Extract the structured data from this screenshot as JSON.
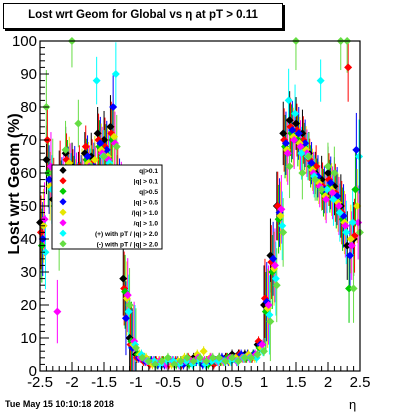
{
  "title": "Lost wrt Geom for Global vs   η at pT > 0.11",
  "footer": "Tue May 15 10:10:18 2018",
  "chart_data": {
    "type": "scatter",
    "title": "Lost wrt Geom for Global vs   η at pT > 0.11",
    "xlabel": "η",
    "ylabel": "Lost wrt Geom (%)",
    "xlim": [
      -2.5,
      2.5
    ],
    "ylim": [
      0,
      100
    ],
    "xticks": [
      -2.5,
      -2,
      -1.5,
      -1,
      -0.5,
      0,
      0.5,
      1,
      1.5,
      2,
      2.5
    ],
    "xtick_labels": [
      "-2.5",
      "-2",
      "-1.5",
      "-1",
      "-0.5",
      "0",
      "0.5",
      "1",
      "1.5",
      "2",
      "2.5"
    ],
    "yticks": [
      0,
      10,
      20,
      30,
      40,
      50,
      60,
      70,
      80,
      90,
      100
    ],
    "ytick_labels": [
      "0",
      "10",
      "20",
      "30",
      "40",
      "50",
      "60",
      "70",
      "80",
      "90",
      "100"
    ],
    "grid": false,
    "legend_position": "left",
    "legend": [
      {
        "label": "q|>0.1",
        "color": "#000000"
      },
      {
        "label": "|q| > 0.1",
        "color": "#ff0000"
      },
      {
        "label": "q|>0.5",
        "color": "#00cc00"
      },
      {
        "label": "|q| > 0.5",
        "color": "#0000ff"
      },
      {
        "label": "/|q| > 1.0",
        "color": "#e6e600"
      },
      {
        "label": "/q| > 1.0",
        "color": "#ff00ff"
      },
      {
        "label": "(+) with pT / |q| > 2.0",
        "color": "#00ffff"
      },
      {
        "label": "(-) with pT / |q| > 2.0",
        "color": "#66dd44"
      }
    ],
    "series": [
      {
        "color": "#000000",
        "x": [
          -2.45,
          -2.35,
          -2.25,
          -2.15,
          -2.05,
          -1.95,
          -1.85,
          -1.75,
          -1.65,
          -1.55,
          -1.45,
          -1.35,
          -1.25,
          -1.15,
          -1.05,
          -0.95,
          -0.85,
          -0.75,
          -0.65,
          -0.55,
          -0.45,
          -0.35,
          -0.25,
          -0.15,
          -0.05,
          0.05,
          0.15,
          0.25,
          0.35,
          0.45,
          0.55,
          0.65,
          0.75,
          0.85,
          0.95,
          1.05,
          1.15,
          1.25,
          1.35,
          1.45,
          1.55,
          1.65,
          1.75,
          1.85,
          1.95,
          2.05,
          2.15,
          2.25,
          2.35,
          2.45
        ],
        "y": [
          45,
          64,
          52,
          58,
          66,
          62,
          60,
          66,
          65,
          72,
          70,
          74,
          55,
          28,
          10,
          5,
          4,
          3,
          3,
          2,
          3,
          2,
          3,
          3,
          4,
          3,
          3,
          3,
          4,
          4,
          5,
          5,
          5,
          4,
          8,
          20,
          35,
          50,
          72,
          76,
          75,
          72,
          66,
          60,
          58,
          60,
          56,
          50,
          38,
          40
        ]
      },
      {
        "color": "#ff0000",
        "x": [
          -2.45,
          -2.35,
          -2.25,
          -2.15,
          -2.05,
          -1.95,
          -1.85,
          -1.75,
          -1.65,
          -1.55,
          -1.45,
          -1.35,
          -1.25,
          -1.15,
          -1.05,
          -0.95,
          -0.85,
          -0.75,
          -0.65,
          -0.55,
          -0.45,
          -0.35,
          -0.25,
          -0.15,
          -0.05,
          0.05,
          0.15,
          0.25,
          0.35,
          0.45,
          0.55,
          0.65,
          0.75,
          0.85,
          0.95,
          1.05,
          1.15,
          1.25,
          1.35,
          1.45,
          1.55,
          1.65,
          1.75,
          1.85,
          1.95,
          2.05,
          2.15,
          2.25,
          2.35,
          2.45
        ],
        "y": [
          42,
          70,
          55,
          61,
          64,
          60,
          62,
          68,
          63,
          70,
          68,
          72,
          57,
          25,
          8,
          4,
          3,
          2,
          3,
          3,
          2,
          3,
          2,
          4,
          3,
          3,
          3,
          2,
          3,
          4,
          4,
          5,
          4,
          4,
          9,
          22,
          33,
          50,
          70,
          74,
          73,
          70,
          64,
          62,
          56,
          58,
          54,
          48,
          92,
          41
        ]
      },
      {
        "color": "#00cc00",
        "x": [
          -2.45,
          -2.35,
          -2.25,
          -2.15,
          -2.05,
          -1.95,
          -1.85,
          -1.75,
          -1.65,
          -1.55,
          -1.45,
          -1.35,
          -1.25,
          -1.15,
          -1.05,
          -0.95,
          -0.85,
          -0.75,
          -0.65,
          -0.55,
          -0.45,
          -0.35,
          -0.25,
          -0.15,
          -0.05,
          0.05,
          0.15,
          0.25,
          0.35,
          0.45,
          0.55,
          0.65,
          0.75,
          0.85,
          0.95,
          1.05,
          1.15,
          1.25,
          1.35,
          1.45,
          1.55,
          1.65,
          1.75,
          1.85,
          1.95,
          2.05,
          2.15,
          2.25,
          2.35,
          2.45
        ],
        "y": [
          38,
          60,
          50,
          55,
          62,
          58,
          57,
          64,
          60,
          68,
          66,
          70,
          52,
          24,
          9,
          5,
          4,
          3,
          2,
          3,
          3,
          2,
          3,
          2,
          3,
          3,
          2,
          3,
          3,
          4,
          4,
          4,
          4,
          5,
          7,
          18,
          30,
          46,
          68,
          72,
          70,
          68,
          62,
          58,
          54,
          56,
          52,
          46,
          25,
          55
        ]
      },
      {
        "color": "#0000ff",
        "x": [
          -2.45,
          -2.35,
          -2.25,
          -2.15,
          -2.05,
          -1.95,
          -1.85,
          -1.75,
          -1.65,
          -1.55,
          -1.45,
          -1.35,
          -1.25,
          -1.15,
          -1.05,
          -0.95,
          -0.85,
          -0.75,
          -0.65,
          -0.55,
          -0.45,
          -0.35,
          -0.25,
          -0.15,
          -0.05,
          0.05,
          0.15,
          0.25,
          0.35,
          0.45,
          0.55,
          0.65,
          0.75,
          0.85,
          0.95,
          1.05,
          1.15,
          1.25,
          1.35,
          1.45,
          1.55,
          1.65,
          1.75,
          1.85,
          1.95,
          2.05,
          2.15,
          2.25,
          2.35,
          2.45
        ],
        "y": [
          40,
          58,
          48,
          56,
          60,
          61,
          59,
          65,
          62,
          69,
          67,
          80,
          54,
          16,
          7,
          4,
          3,
          3,
          2,
          2,
          3,
          3,
          2,
          3,
          3,
          2,
          3,
          3,
          4,
          3,
          4,
          5,
          5,
          5,
          8,
          21,
          34,
          48,
          69,
          73,
          72,
          69,
          63,
          59,
          55,
          57,
          53,
          47,
          35,
          67
        ]
      },
      {
        "color": "#e6e600",
        "x": [
          -2.45,
          -2.35,
          -2.25,
          -2.15,
          -2.05,
          -1.95,
          -1.85,
          -1.75,
          -1.65,
          -1.55,
          -1.45,
          -1.35,
          -1.25,
          -1.15,
          -1.05,
          -0.95,
          -0.85,
          -0.75,
          -0.65,
          -0.55,
          -0.45,
          -0.35,
          -0.25,
          -0.15,
          -0.05,
          0.05,
          0.15,
          0.25,
          0.35,
          0.45,
          0.55,
          0.65,
          0.75,
          0.85,
          0.95,
          1.05,
          1.15,
          1.25,
          1.35,
          1.45,
          1.55,
          1.65,
          1.75,
          1.85,
          1.95,
          2.05,
          2.15,
          2.25,
          2.35,
          2.45
        ],
        "y": [
          44,
          56,
          53,
          54,
          63,
          57,
          61,
          63,
          64,
          67,
          65,
          71,
          50,
          22,
          8,
          5,
          4,
          2,
          3,
          3,
          2,
          3,
          4,
          3,
          5,
          6,
          4,
          3,
          3,
          3,
          4,
          4,
          5,
          4,
          7,
          19,
          31,
          47,
          67,
          71,
          69,
          67,
          61,
          57,
          53,
          55,
          51,
          45,
          40,
          50
        ]
      },
      {
        "color": "#ff00ff",
        "x": [
          -2.45,
          -2.35,
          -2.25,
          -2.15,
          -2.05,
          -1.95,
          -1.85,
          -1.75,
          -1.65,
          -1.55,
          -1.45,
          -1.35,
          -1.25,
          -1.15,
          -1.05,
          -0.95,
          -0.85,
          -0.75,
          -0.65,
          -0.55,
          -0.45,
          -0.35,
          -0.25,
          -0.15,
          -0.05,
          0.05,
          0.15,
          0.25,
          0.35,
          0.45,
          0.55,
          0.65,
          0.75,
          0.85,
          0.95,
          1.05,
          1.15,
          1.25,
          1.35,
          1.45,
          1.55,
          1.65,
          1.75,
          1.85,
          1.95,
          2.05,
          2.15,
          2.25,
          2.35,
          2.45
        ],
        "y": [
          46,
          62,
          18,
          57,
          61,
          59,
          58,
          62,
          61,
          66,
          64,
          69,
          53,
          23,
          9,
          4,
          3,
          3,
          3,
          2,
          3,
          2,
          3,
          3,
          4,
          3,
          4,
          3,
          3,
          4,
          3,
          4,
          4,
          5,
          8,
          20,
          32,
          49,
          66,
          70,
          68,
          66,
          60,
          56,
          52,
          54,
          50,
          44,
          38,
          45
        ]
      },
      {
        "color": "#00ffff",
        "x": [
          -2.45,
          -2.35,
          -2.25,
          -2.15,
          -2.05,
          -1.95,
          -1.85,
          -1.75,
          -1.65,
          -1.55,
          -1.45,
          -1.35,
          -1.25,
          -1.15,
          -1.05,
          -0.95,
          -0.85,
          -0.75,
          -0.65,
          -0.55,
          -0.45,
          -0.35,
          -0.25,
          -0.15,
          -0.05,
          0.05,
          0.15,
          0.25,
          0.35,
          0.45,
          0.55,
          0.65,
          0.75,
          0.85,
          0.95,
          1.05,
          1.15,
          1.25,
          1.35,
          1.45,
          1.55,
          1.65,
          1.75,
          1.85,
          1.95,
          2.05,
          2.15,
          2.25,
          2.35,
          2.45
        ],
        "y": [
          36,
          55,
          47,
          52,
          58,
          56,
          55,
          61,
          88,
          65,
          63,
          90,
          49,
          18,
          8,
          5,
          3,
          3,
          2,
          3,
          3,
          2,
          3,
          2,
          3,
          2,
          3,
          3,
          3,
          3,
          3,
          4,
          4,
          4,
          6,
          17,
          28,
          44,
          82,
          78,
          66,
          65,
          59,
          88,
          55,
          52,
          48,
          42,
          45,
          65
        ]
      },
      {
        "color": "#66dd44",
        "x": [
          -2.45,
          -2.35,
          -2.25,
          -2.15,
          -2.05,
          -1.95,
          -1.85,
          -1.75,
          -1.65,
          -1.55,
          -1.45,
          -1.35,
          -1.25,
          -1.15,
          -1.05,
          -0.95,
          -0.85,
          -0.75,
          -0.65,
          -0.55,
          -0.45,
          -0.35,
          -0.25,
          -0.15,
          -0.05,
          0.05,
          0.15,
          0.25,
          0.35,
          0.45,
          0.55,
          0.65,
          0.75,
          0.85,
          0.95,
          1.05,
          1.15,
          1.25,
          1.35,
          1.45,
          1.55,
          1.65,
          1.75,
          1.85,
          1.95,
          2.05,
          2.15,
          2.25,
          2.35,
          2.45
        ],
        "y": [
          80,
          60,
          40,
          67,
          100,
          75,
          60,
          62,
          60,
          65,
          62,
          68,
          48,
          20,
          7,
          4,
          3,
          2,
          3,
          4,
          2,
          3,
          4,
          3,
          4,
          3,
          4,
          4,
          3,
          4,
          3,
          4,
          4,
          5,
          6,
          15,
          26,
          42,
          62,
          100,
          60,
          65,
          58,
          55,
          62,
          60,
          100,
          100,
          25,
          42
        ]
      }
    ]
  }
}
